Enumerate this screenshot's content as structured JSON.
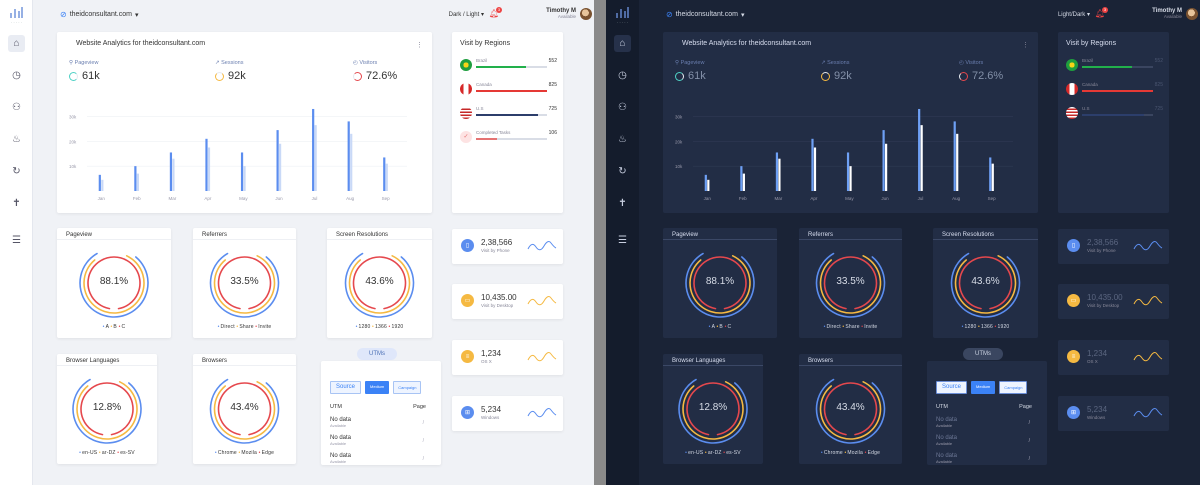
{
  "panels": [
    {
      "mode": "light",
      "theme_toggle": "Dark / Light",
      "colors": {
        "accent": "#3b82f6"
      }
    },
    {
      "mode": "dark",
      "theme_toggle": "Light/Dark",
      "colors": {
        "accent": "#3b82f6"
      }
    }
  ],
  "header": {
    "site": "theidconsultant.com",
    "notifications_count": "3",
    "user_name": "Timothy M",
    "user_status": "Available"
  },
  "sidebar": {
    "icons": [
      "home-icon",
      "history-icon",
      "users-icon",
      "fire-icon",
      "refresh-icon",
      "person-icon",
      "list-icon"
    ]
  },
  "analytics": {
    "title": "Website Analytics for theidconsultant.com",
    "kpis": [
      {
        "label": "Pageview",
        "value": "61k",
        "icon": "user-icon"
      },
      {
        "label": "Sessions",
        "value": "92k",
        "icon": "trend-icon"
      },
      {
        "label": "Visitors",
        "value": "72.6%",
        "icon": "clock-icon"
      }
    ]
  },
  "chart_data": {
    "type": "bar",
    "categories": [
      "Jan",
      "Feb",
      "Mar",
      "Apr",
      "May",
      "Jun",
      "Jul",
      "Aug",
      "Sep"
    ],
    "series": [
      {
        "values": [
          6.5,
          10,
          15.5,
          21,
          15.5,
          24.5,
          33,
          28,
          13.5
        ]
      },
      {
        "values": [
          4.5,
          7,
          13,
          17.5,
          10,
          19,
          26.5,
          23,
          11
        ]
      }
    ],
    "y_ticks": [
      "10k",
      "20k",
      "30k"
    ],
    "ylim": [
      0,
      35
    ],
    "grid": true
  },
  "regions": {
    "title": "Visit by Regions",
    "items": [
      {
        "name": "Brazil",
        "value": "552",
        "fraction": 0.7,
        "color": "#22b04b",
        "flag": "brazil-flag-icon"
      },
      {
        "name": "Canada",
        "value": "825",
        "fraction": 1.0,
        "color": "#e53935",
        "flag": "canada-flag-icon"
      },
      {
        "name": "U.S",
        "value": "725",
        "fraction": 0.88,
        "color": "#2c3e6b",
        "flag": "us-flag-icon"
      },
      {
        "name": "Completed Tasks",
        "value": "106",
        "fraction": 0.3,
        "color": "#e57373",
        "flag": "tasks-icon"
      }
    ]
  },
  "stats": [
    {
      "value": "2,38,566",
      "label": "Visit by Phone",
      "icon": "phone-icon",
      "color": "#5b8def"
    },
    {
      "value": "10,435.00",
      "label": "Visit by Desktop",
      "icon": "desktop-icon",
      "color": "#f5b942"
    },
    {
      "value": "1,234",
      "label": "OS X",
      "icon": "stack-icon",
      "color": "#f5b942"
    },
    {
      "value": "5,234",
      "label": "Windows",
      "icon": "windows-icon",
      "color": "#5b8def"
    }
  ],
  "donuts": [
    {
      "title": "Pageview",
      "percent": "88.1%",
      "legend": [
        "A",
        "B",
        "C"
      ]
    },
    {
      "title": "Referrers",
      "percent": "33.5%",
      "legend": [
        "Direct",
        "Share",
        "Invite"
      ]
    },
    {
      "title": "Screen Resolutions",
      "percent": "43.6%",
      "legend": [
        "1280",
        "1366",
        "1920"
      ]
    },
    {
      "title": "Browser Languages",
      "percent": "12.8%",
      "legend": [
        "en-US",
        "ar-DZ",
        "es-SV"
      ]
    },
    {
      "title": "Browsers",
      "percent": "43.4%",
      "legend": [
        "Chrome",
        "Mozila",
        "Edge"
      ]
    }
  ],
  "utms": {
    "title": "UTMs",
    "buttons": [
      "Source",
      "Medium",
      "Campaign"
    ],
    "col_utm": "UTM",
    "col_page": "Page",
    "rows": [
      {
        "a": "No data",
        "b": "Available",
        "sep": "/"
      },
      {
        "a": "No data",
        "b": "Available",
        "sep": "/"
      },
      {
        "a": "No data",
        "b": "Available",
        "sep": "/"
      }
    ]
  }
}
